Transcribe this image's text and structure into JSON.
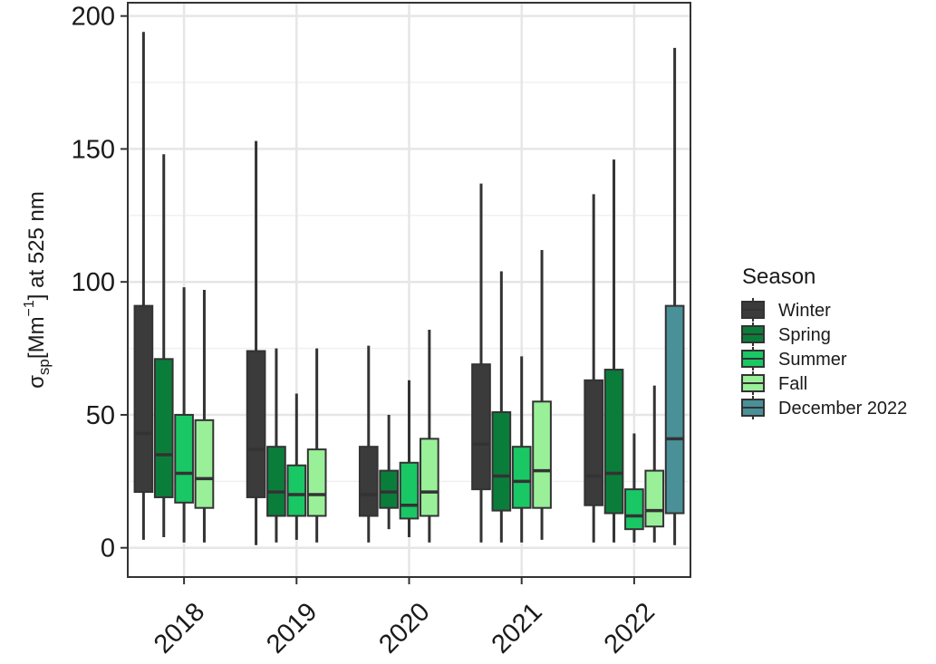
{
  "chart_data": {
    "type": "boxplot",
    "categories": [
      "2018",
      "2019",
      "2020",
      "2021",
      "2022"
    ],
    "ylabel": {
      "symbol": "σ",
      "subscript": "sp",
      "bracket_open": "[Mm",
      "superscript": "−1",
      "rest": "] at 525 nm"
    },
    "ylim": [
      -11,
      205
    ],
    "yticks": [
      0,
      50,
      100,
      150,
      200
    ],
    "ytick_labels": [
      "0",
      "50",
      "100",
      "150",
      "200"
    ],
    "grid": true,
    "legend": {
      "title": "Season",
      "position": "right"
    },
    "series": [
      {
        "name": "Winter",
        "color": "#3b3b3b",
        "boxes": [
          {
            "category": "2018",
            "min": 3,
            "q1": 21,
            "median": 43,
            "q3": 91,
            "max": 194
          },
          {
            "category": "2019",
            "min": 1,
            "q1": 19,
            "median": 37,
            "q3": 74,
            "max": 153
          },
          {
            "category": "2020",
            "min": 2,
            "q1": 12,
            "median": 20,
            "q3": 38,
            "max": 76
          },
          {
            "category": "2021",
            "min": 2,
            "q1": 22,
            "median": 39,
            "q3": 69,
            "max": 137
          },
          {
            "category": "2022",
            "min": 2,
            "q1": 16,
            "median": 27,
            "q3": 63,
            "max": 133
          }
        ]
      },
      {
        "name": "Spring",
        "color": "#0b7d3b",
        "boxes": [
          {
            "category": "2018",
            "min": 4,
            "q1": 19,
            "median": 35,
            "q3": 71,
            "max": 148
          },
          {
            "category": "2019",
            "min": 2,
            "q1": 12,
            "median": 21,
            "q3": 38,
            "max": 75
          },
          {
            "category": "2020",
            "min": 7,
            "q1": 15,
            "median": 21,
            "q3": 29,
            "max": 50
          },
          {
            "category": "2021",
            "min": 2,
            "q1": 14,
            "median": 27,
            "q3": 51,
            "max": 104
          },
          {
            "category": "2022",
            "min": 2,
            "q1": 13,
            "median": 28,
            "q3": 67,
            "max": 146
          }
        ]
      },
      {
        "name": "Summer",
        "color": "#1ac765",
        "boxes": [
          {
            "category": "2018",
            "min": 2,
            "q1": 17,
            "median": 28,
            "q3": 50,
            "max": 98
          },
          {
            "category": "2019",
            "min": 3,
            "q1": 12,
            "median": 20,
            "q3": 31,
            "max": 58
          },
          {
            "category": "2020",
            "min": 4,
            "q1": 11,
            "median": 16,
            "q3": 32,
            "max": 63
          },
          {
            "category": "2021",
            "min": 2,
            "q1": 15,
            "median": 25,
            "q3": 38,
            "max": 72
          },
          {
            "category": "2022",
            "min": 2,
            "q1": 7,
            "median": 12,
            "q3": 22,
            "max": 43
          }
        ]
      },
      {
        "name": "Fall",
        "color": "#99f099",
        "boxes": [
          {
            "category": "2018",
            "min": 2,
            "q1": 15,
            "median": 26,
            "q3": 48,
            "max": 97
          },
          {
            "category": "2019",
            "min": 2,
            "q1": 12,
            "median": 20,
            "q3": 37,
            "max": 75
          },
          {
            "category": "2020",
            "min": 2,
            "q1": 12,
            "median": 21,
            "q3": 41,
            "max": 82
          },
          {
            "category": "2021",
            "min": 3,
            "q1": 15,
            "median": 29,
            "q3": 55,
            "max": 112
          },
          {
            "category": "2022",
            "min": 2,
            "q1": 8,
            "median": 14,
            "q3": 29,
            "max": 61
          }
        ]
      },
      {
        "name": "December 2022",
        "color": "#4a9098",
        "boxes": [
          {
            "category": "2022",
            "min": 1,
            "q1": 13,
            "median": 41,
            "q3": 91,
            "max": 188
          }
        ]
      }
    ]
  }
}
